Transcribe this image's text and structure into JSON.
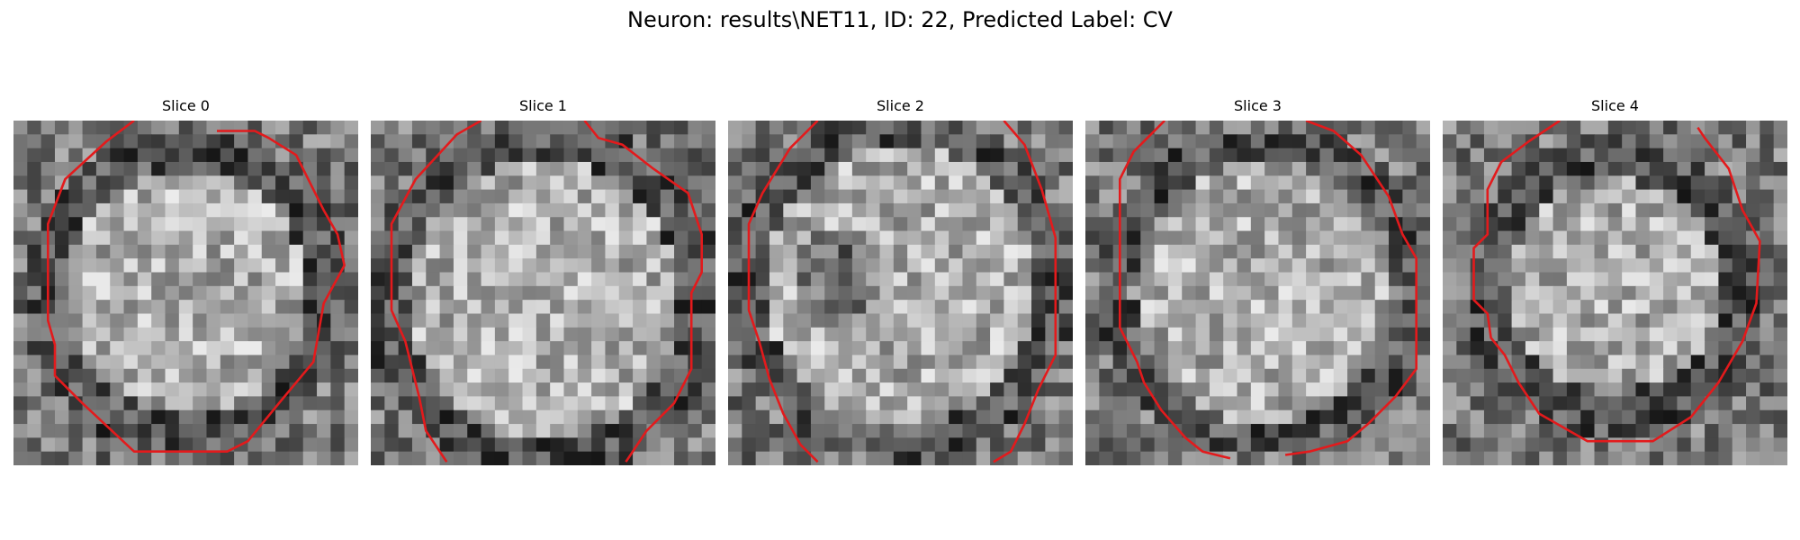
{
  "figure": {
    "title": "Neuron: results\\NET11, ID: 22, Predicted Label: CV"
  },
  "panels": [
    {
      "title": "Slice 0"
    },
    {
      "title": "Slice 1"
    },
    {
      "title": "Slice 2"
    },
    {
      "title": "Slice 3"
    },
    {
      "title": "Slice 4"
    }
  ],
  "colors": {
    "contour": "#e31a1c",
    "background": "#ffffff"
  }
}
